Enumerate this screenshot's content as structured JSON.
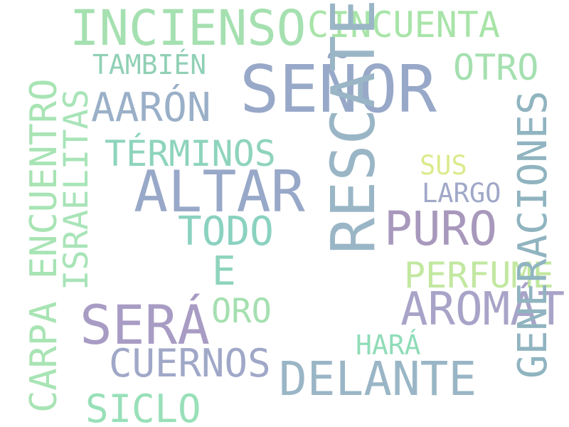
{
  "words": [
    {
      "text": "SEÑOR",
      "color": "#98a8c8"
    },
    {
      "text": "INCIENSO",
      "color": "#a5e0b0"
    },
    {
      "text": "CINCUENTA",
      "color": "#a8e4a8"
    },
    {
      "text": "OTRO",
      "color": "#a5e0b0"
    },
    {
      "text": "TAMBIÉN",
      "color": "#90d0b5"
    },
    {
      "text": "AARÓN",
      "color": "#9ab0c8"
    },
    {
      "text": "TÉRMINOS",
      "color": "#8ed4bc"
    },
    {
      "text": "ALTAR",
      "color": "#98a8c8"
    },
    {
      "text": "SUS",
      "color": "#dcea8c"
    },
    {
      "text": "LARGO",
      "color": "#a0a8c8"
    },
    {
      "text": "PURO",
      "color": "#a898bc"
    },
    {
      "text": "TODO",
      "color": "#8ad2c0"
    },
    {
      "text": "E",
      "color": "#8ed4bc"
    },
    {
      "text": "PERFUME",
      "color": "#c2e8a0"
    },
    {
      "text": "ORO",
      "color": "#a5e0b0"
    },
    {
      "text": "AROMÁTICA",
      "color": "#a8a4c8"
    },
    {
      "text": "SERÁ",
      "color": "#a89cc4"
    },
    {
      "text": "HARÁ",
      "color": "#8fdcb8"
    },
    {
      "text": "CUERNOS",
      "color": "#a0a8c8"
    },
    {
      "text": "DELANTE",
      "color": "#9ab6c6"
    },
    {
      "text": "SICLO",
      "color": "#98e0b8"
    },
    {
      "text": "RESCATE",
      "color": "#9ab6c6"
    },
    {
      "text": "CARPA ENCUENTRO",
      "color": "#a8e4b4"
    },
    {
      "text": "ISRAELITAS",
      "color": "#a8e4b8"
    },
    {
      "text": "GENERACIONES",
      "color": "#90b4c0"
    }
  ]
}
